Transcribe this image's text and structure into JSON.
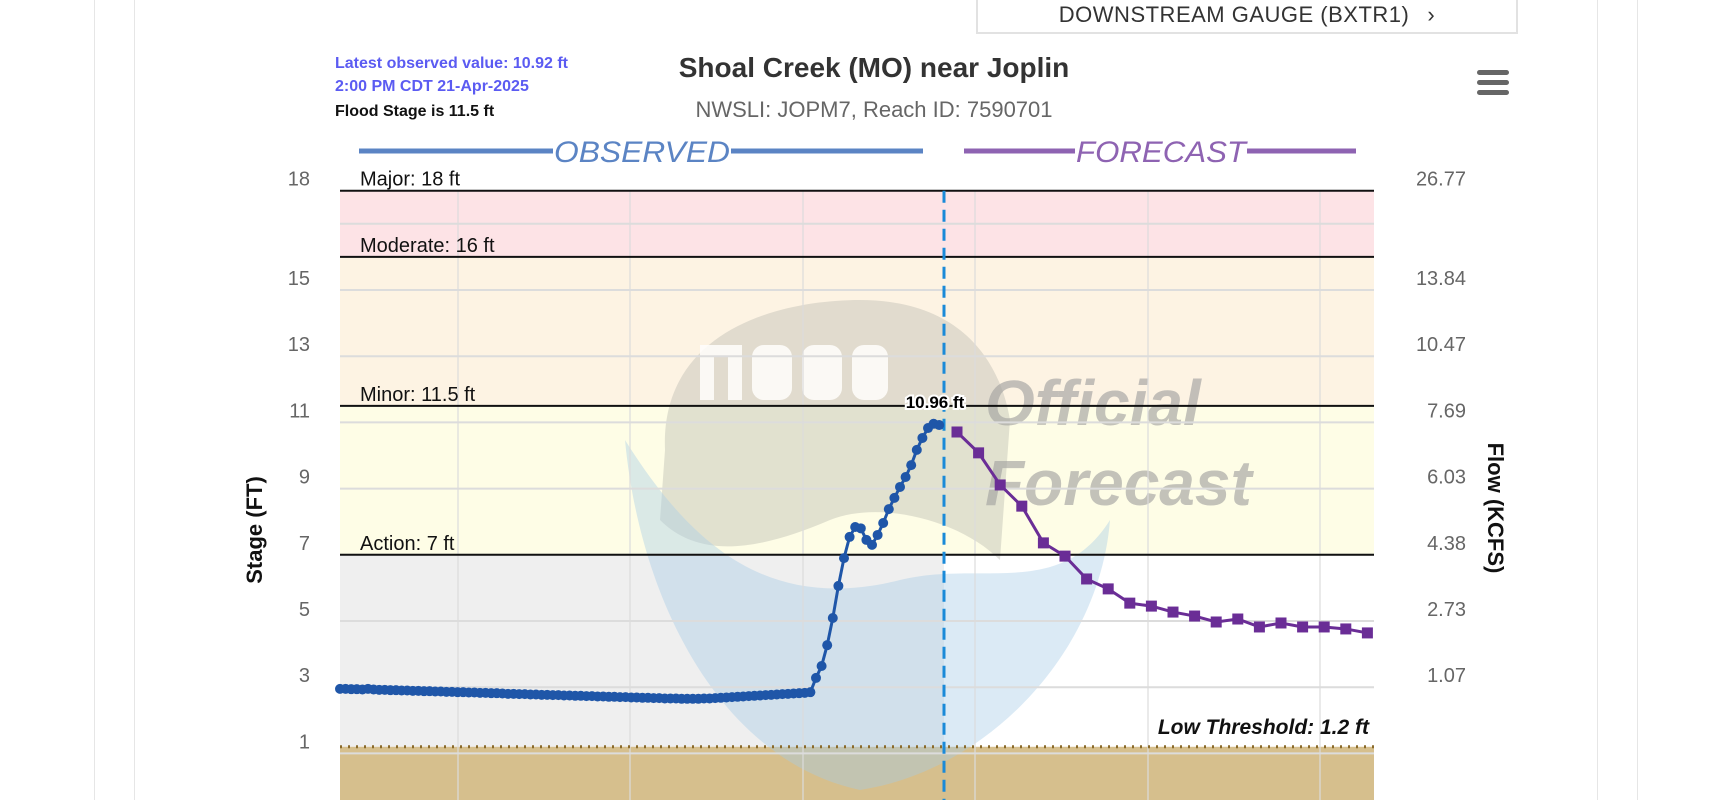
{
  "nav": {
    "downstream_button_label": "DOWNSTREAM GAUGE (BXTR1)",
    "arrow_icon": "chevron-right-icon"
  },
  "info": {
    "latest_observed": "Latest observed value: 10.92 ft",
    "latest_time": "2:00 PM CDT 21-Apr-2025",
    "flood_stage": "Flood Stage is 11.5 ft",
    "info_color": "#5b5bf2"
  },
  "menu_icon": "hamburger-menu-icon",
  "chart_data": {
    "type": "line",
    "title": "Shoal Creek (MO) near Joplin",
    "subtitle": "NWSLI: JOPM7, Reach ID: 7590701",
    "ylabel": "Stage (FT)",
    "ylabel_right": "Flow (KCFS)",
    "ylim": [
      -1.3,
      18
    ],
    "grid": true,
    "left_ticks": [
      18,
      15,
      13,
      11,
      9,
      7,
      5,
      3,
      1
    ],
    "right_ticks": [
      {
        "stage": 18,
        "label": "26.77"
      },
      {
        "stage": 15,
        "label": "13.84"
      },
      {
        "stage": 13,
        "label": "10.47"
      },
      {
        "stage": 11,
        "label": "7.69"
      },
      {
        "stage": 9,
        "label": "6.03"
      },
      {
        "stage": 7,
        "label": "4.38"
      },
      {
        "stage": 5,
        "label": "2.73"
      },
      {
        "stage": 3,
        "label": "1.07"
      }
    ],
    "thresholds": [
      {
        "label": "Major: 18 ft",
        "value": 18,
        "band_color": "#fde3e6"
      },
      {
        "label": "Moderate: 16 ft",
        "value": 16,
        "band_color": "#fdf3e3"
      },
      {
        "label": "Minor: 11.5 ft",
        "value": 11.5,
        "band_color": "#fefde6"
      },
      {
        "label": "Action: 7 ft",
        "value": 7,
        "band_color": "#efefef"
      }
    ],
    "low_threshold": {
      "label": "Low Threshold: 1.2 ft",
      "value": 1.2,
      "color": "#d6bf8d"
    },
    "legend": [
      {
        "label": "OBSERVED",
        "color": "#5b84c4"
      },
      {
        "label": "FORECAST",
        "color": "#8e63b2"
      }
    ],
    "peak_label": "10.96 ft",
    "watermark": [
      "Official",
      "Forecast"
    ],
    "series": [
      {
        "name": "OBSERVED",
        "color": "#1f56a8",
        "marker": "circle",
        "values": [
          2.95,
          2.95,
          2.94,
          2.94,
          2.93,
          2.95,
          2.93,
          2.92,
          2.92,
          2.91,
          2.91,
          2.9,
          2.9,
          2.89,
          2.89,
          2.88,
          2.88,
          2.87,
          2.87,
          2.86,
          2.86,
          2.85,
          2.85,
          2.84,
          2.84,
          2.83,
          2.83,
          2.82,
          2.82,
          2.81,
          2.8,
          2.8,
          2.79,
          2.79,
          2.78,
          2.78,
          2.77,
          2.77,
          2.76,
          2.76,
          2.75,
          2.75,
          2.74,
          2.74,
          2.73,
          2.73,
          2.72,
          2.72,
          2.71,
          2.71,
          2.7,
          2.7,
          2.69,
          2.69,
          2.68,
          2.68,
          2.67,
          2.67,
          2.66,
          2.66,
          2.66,
          2.65,
          2.65,
          2.65,
          2.65,
          2.66,
          2.66,
          2.67,
          2.68,
          2.69,
          2.7,
          2.71,
          2.72,
          2.73,
          2.74,
          2.75,
          2.76,
          2.77,
          2.78,
          2.79,
          2.8,
          2.81,
          2.82,
          2.83,
          2.85,
          3.28,
          3.64,
          4.27,
          5.09,
          6.06,
          6.9,
          7.54,
          7.84,
          7.8,
          7.45,
          7.3,
          7.6,
          7.96,
          8.38,
          8.72,
          9.05,
          9.35,
          9.71,
          10.17,
          10.53,
          10.83,
          10.96,
          10.92
        ]
      },
      {
        "name": "FORECAST",
        "color": "#6a2d96",
        "marker": "square",
        "values": [
          10.71,
          10.08,
          9.11,
          8.47,
          7.36,
          6.96,
          6.27,
          5.97,
          5.54,
          5.45,
          5.27,
          5.15,
          4.97,
          5.06,
          4.82,
          4.94,
          4.82,
          4.82,
          4.76,
          4.64
        ]
      }
    ],
    "now_line_color": "#1a8ad8"
  }
}
